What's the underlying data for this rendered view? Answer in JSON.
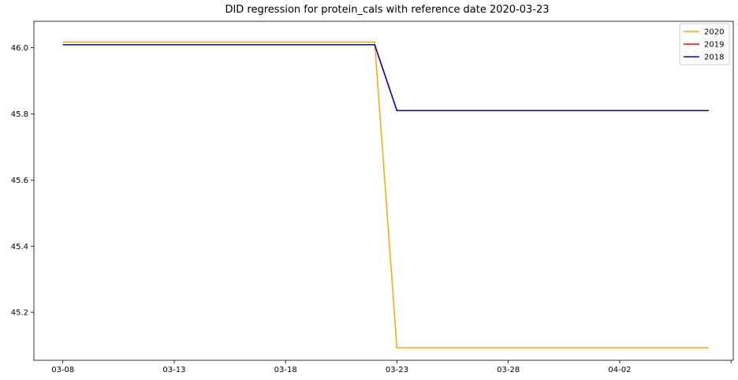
{
  "chart_data": {
    "type": "line",
    "title": "DID regression for protein_cals with reference date 2020-03-23",
    "xlabel": "",
    "ylabel": "",
    "x_ticks": [
      "03-08",
      "03-13",
      "03-18",
      "03-23",
      "03-28",
      "04-02",
      ""
    ],
    "x_tick_values": [
      0,
      5,
      10,
      15,
      20,
      25,
      30
    ],
    "xlim": [
      -1.3,
      30.1
    ],
    "ylim": [
      45.055,
      46.08
    ],
    "y_ticks": [
      45.2,
      45.4,
      45.6,
      45.8,
      46.0
    ],
    "y_tick_labels": [
      "45.2",
      "45.4",
      "45.6",
      "45.8",
      "46.0"
    ],
    "grid": false,
    "legend_position": "top-right",
    "series": [
      {
        "name": "2020",
        "color": "#ffa500",
        "x": [
          0,
          14,
          15,
          29
        ],
        "y": [
          46.017,
          46.017,
          45.093,
          45.093
        ]
      },
      {
        "name": "2019",
        "color": "#ff0000",
        "x": [
          0,
          14,
          15,
          29
        ],
        "y": [
          46.009,
          46.009,
          45.81,
          45.81
        ]
      },
      {
        "name": "2018",
        "color": "#0000cc",
        "x": [
          0,
          14,
          15,
          29
        ],
        "y": [
          46.009,
          46.009,
          45.81,
          45.81
        ]
      }
    ]
  }
}
